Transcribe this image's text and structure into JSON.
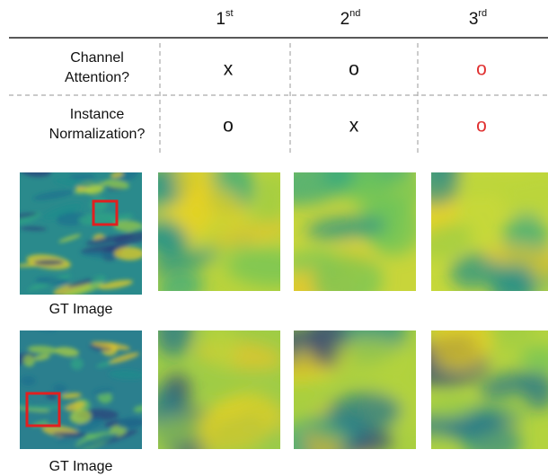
{
  "table": {
    "columns": [
      {
        "base": "1",
        "sup": "st"
      },
      {
        "base": "2",
        "sup": "nd"
      },
      {
        "base": "3",
        "sup": "rd"
      }
    ],
    "rows": [
      {
        "label": [
          "Channel",
          "Attention?"
        ],
        "cells": [
          "x",
          "o",
          "o"
        ]
      },
      {
        "label": [
          "Instance",
          "Normalization?"
        ],
        "cells": [
          "o",
          "x",
          "o"
        ]
      }
    ]
  },
  "figures": {
    "captions": [
      "GT Image",
      "GT Image"
    ]
  }
}
